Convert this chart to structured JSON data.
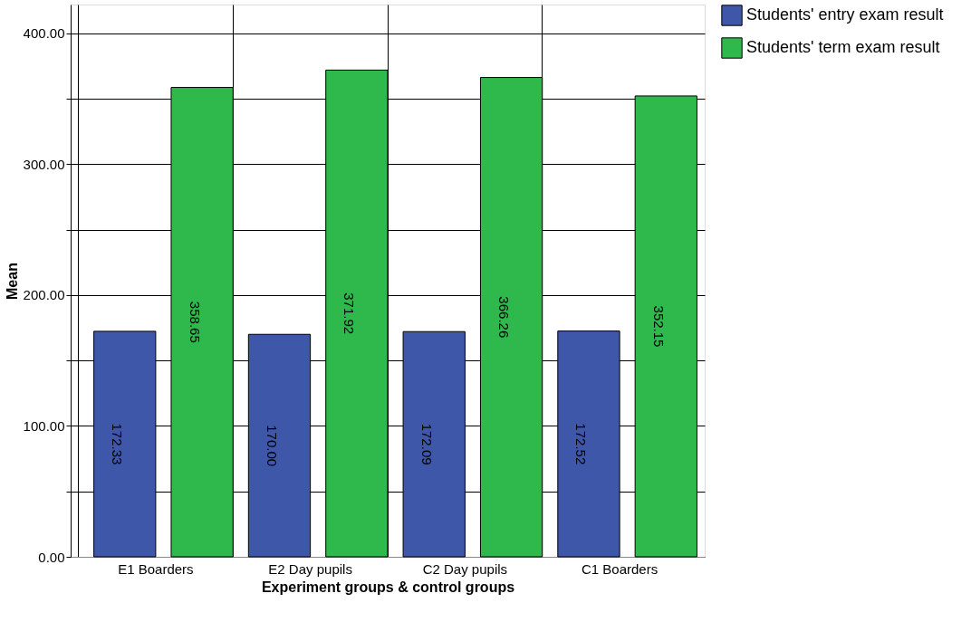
{
  "chart_data": {
    "type": "bar",
    "xlabel": "Experiment groups & control groups",
    "ylabel": "Mean",
    "categories": [
      "E1 Boarders",
      "E2 Day pupils",
      "C2 Day pupils",
      "C1 Boarders"
    ],
    "series": [
      {
        "name": "Students' entry exam result",
        "color": "#3f57a9",
        "values": [
          172.33,
          170.0,
          172.09,
          172.52
        ],
        "value_labels": [
          "172.33",
          "170.00",
          "172.09",
          "172.52"
        ]
      },
      {
        "name": "Students' term exam result",
        "color": "#2fb84b",
        "values": [
          358.65,
          371.92,
          366.26,
          352.15
        ],
        "value_labels": [
          "358.65",
          "371.92",
          "366.26",
          "352.15"
        ]
      }
    ],
    "ylim": [
      0,
      422
    ],
    "yticks": [
      {
        "value": 0,
        "label": "0.00"
      },
      {
        "value": 50,
        "label": null
      },
      {
        "value": 100,
        "label": "100.00"
      },
      {
        "value": 150,
        "label": null
      },
      {
        "value": 200,
        "label": "200.00"
      },
      {
        "value": 250,
        "label": null
      },
      {
        "value": 300,
        "label": "300.00"
      },
      {
        "value": 350,
        "label": null
      },
      {
        "value": 400,
        "label": "400.00"
      }
    ],
    "grid": true,
    "legend": "top right"
  }
}
